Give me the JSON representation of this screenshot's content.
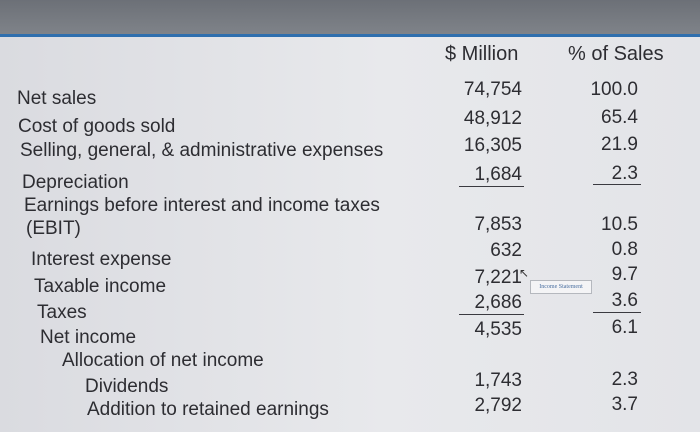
{
  "headers": {
    "million": "$ Million",
    "pct": "% of Sales"
  },
  "rows": [
    {
      "label": "Net sales",
      "million": "74,754",
      "pct": "100.0"
    },
    {
      "label": "Cost of goods sold",
      "million": "48,912",
      "pct": "65.4"
    },
    {
      "label": "Selling, general, & administrative expenses",
      "million": "16,305",
      "pct": "21.9"
    },
    {
      "label": "Depreciation",
      "million": "1,684",
      "pct": "2.3"
    },
    {
      "label": "Earnings before interest and income taxes",
      "label2": "(EBIT)",
      "million": "7,853",
      "pct": "10.5"
    },
    {
      "label": "Interest expense",
      "million": "632",
      "pct": "0.8"
    },
    {
      "label": "Taxable income",
      "million": "7,221",
      "pct": "9.7"
    },
    {
      "label": "Taxes",
      "million": "2,686",
      "pct": "3.6"
    },
    {
      "label": "Net income",
      "million": "4,535",
      "pct": "6.1"
    },
    {
      "label": "Allocation of net income"
    },
    {
      "label": "Dividends",
      "million": "1,743",
      "pct": "2.3"
    },
    {
      "label": "Addition to retained earnings",
      "million": "2,792",
      "pct": "3.7"
    }
  ],
  "tooltip": "Income Statement"
}
